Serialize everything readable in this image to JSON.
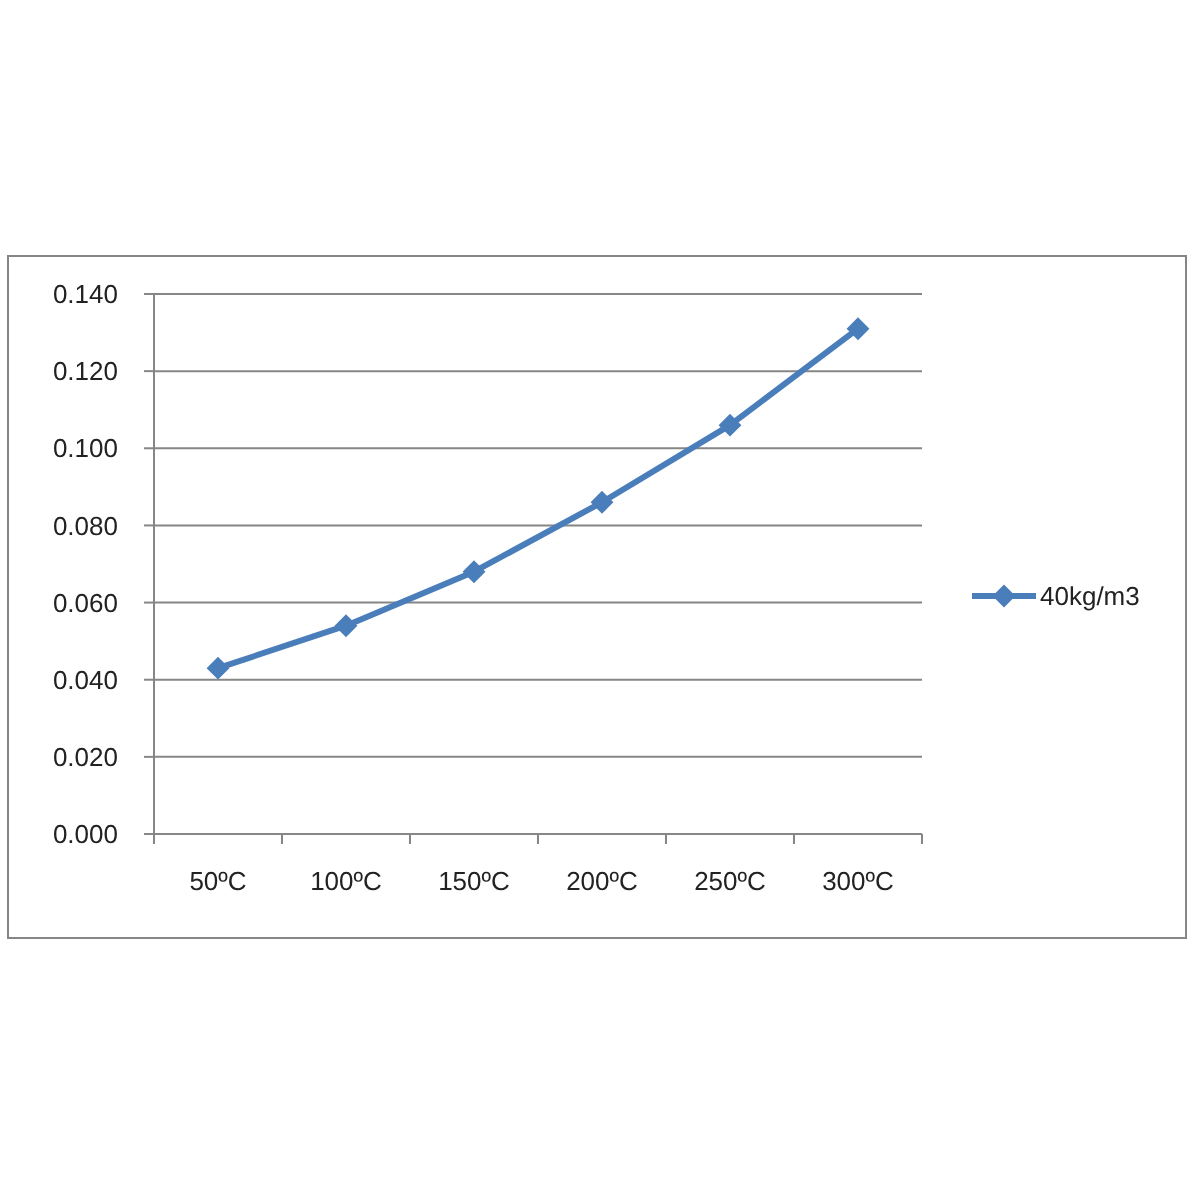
{
  "chart_data": {
    "type": "line",
    "categories": [
      "50ºC",
      "100ºC",
      "150ºC",
      "200ºC",
      "250ºC",
      "300ºC"
    ],
    "series": [
      {
        "name": "40kg/m3",
        "color": "#4a7ebb",
        "values": [
          0.043,
          0.054,
          0.068,
          0.086,
          0.106,
          0.131
        ]
      }
    ],
    "ylim": [
      0,
      0.14
    ],
    "yticks": [
      {
        "value": 0,
        "label": "0.000"
      },
      {
        "value": 0.02,
        "label": "0.020"
      },
      {
        "value": 0.04,
        "label": "0.040"
      },
      {
        "value": 0.06,
        "label": "0.060"
      },
      {
        "value": 0.08,
        "label": "0.080"
      },
      {
        "value": 0.1,
        "label": "0.100"
      },
      {
        "value": 0.12,
        "label": "0.120"
      },
      {
        "value": 0.14,
        "label": "0.140"
      }
    ],
    "grid": "y",
    "legend": "right",
    "marker": "diamond",
    "line_style": "solid"
  }
}
